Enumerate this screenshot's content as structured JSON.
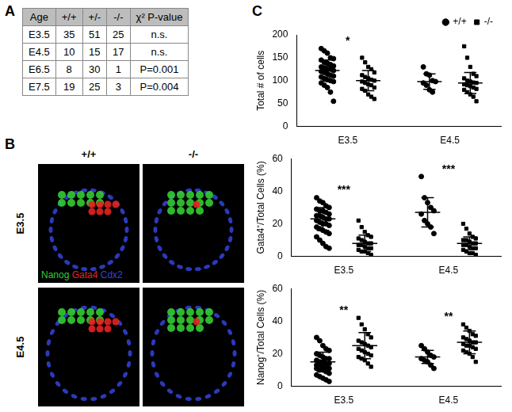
{
  "panel_labels": [
    "A",
    "B",
    "C"
  ],
  "table": {
    "header": [
      "Age",
      "+/+",
      "+/-",
      "-/-",
      "χ² P-value"
    ],
    "rows": [
      [
        "E3.5",
        35,
        51,
        25,
        "n.s."
      ],
      [
        "E4.5",
        10,
        15,
        17,
        "n.s."
      ],
      [
        "E6.5",
        8,
        30,
        1,
        "P=0.001"
      ],
      [
        "E7.5",
        19,
        25,
        3,
        "P=0.004"
      ]
    ]
  },
  "images": {
    "columns": [
      "+/+",
      "-/-"
    ],
    "rows": [
      "E3.5",
      "E4.5"
    ],
    "stains": [
      {
        "name": "Nanog",
        "color": "#33cc33"
      },
      {
        "name": "Gata4",
        "color": "#e62222"
      },
      {
        "name": "Cdx2",
        "color": "#3344dd"
      }
    ]
  },
  "chart_data": [
    {
      "type": "scatter",
      "y_label": "Total # of cells",
      "categories": [
        "E3.5",
        "E4.5"
      ],
      "ylim": [
        0,
        200
      ],
      "yticks": [
        0,
        50,
        100,
        150,
        200
      ],
      "grid": false,
      "legend": "top right",
      "series": [
        {
          "name": "+/+",
          "color": "#000000",
          "marker": "circle",
          "values": [
            [
              170,
              165,
              160,
              150,
              148,
              145,
              140,
              138,
              135,
              132,
              130,
              128,
              126,
              125,
              122,
              120,
              118,
              115,
              112,
              110,
              108,
              105,
              102,
              100,
              98,
              95,
              90,
              85,
              75,
              55
            ],
            [
              130,
              115,
              112,
              100,
              98,
              95,
              90,
              80,
              75
            ]
          ],
          "mean": [
            122,
            98
          ],
          "sd": [
            23,
            17
          ]
        },
        {
          "name": "-/-",
          "color": "#000000",
          "marker": "square",
          "values": [
            [
              150,
              140,
              130,
              125,
              118,
              112,
              108,
              105,
              102,
              100,
              98,
              95,
              92,
              90,
              85,
              82,
              78,
              70,
              65,
              60
            ],
            [
              175,
              150,
              130,
              115,
              110,
              105,
              100,
              98,
              96,
              95,
              92,
              90,
              88,
              85,
              82,
              80,
              75,
              70,
              65,
              55
            ]
          ],
          "mean": [
            100,
            95
          ],
          "sd": [
            22,
            23
          ]
        }
      ],
      "annotations": [
        {
          "category": "E3.5",
          "text": "*"
        }
      ]
    },
    {
      "type": "scatter",
      "y_label": "Gata4⁺/Total Cells (%)",
      "categories": [
        "E3.5",
        "E4.5"
      ],
      "ylim": [
        0,
        60
      ],
      "yticks": [
        0,
        20,
        40,
        60
      ],
      "grid": false,
      "series": [
        {
          "name": "+/+",
          "color": "#000000",
          "marker": "circle",
          "values": [
            [
              36,
              34,
              33,
              31,
              30,
              29,
              28,
              28,
              27,
              26,
              25,
              25,
              24,
              23,
              23,
              22,
              21,
              20,
              20,
              19,
              18,
              17,
              16,
              15,
              14,
              12,
              10,
              8,
              6,
              5
            ],
            [
              49,
              36,
              33,
              30,
              28,
              26,
              22,
              20,
              18,
              14
            ]
          ],
          "mean": [
            23,
            27
          ],
          "sd": [
            7,
            9
          ]
        },
        {
          "name": "-/-",
          "color": "#000000",
          "marker": "square",
          "values": [
            [
              22,
              18,
              15,
              13,
              12,
              11,
              10,
              9,
              8,
              8,
              7,
              7,
              6,
              5,
              5,
              4,
              3,
              3,
              2,
              1
            ],
            [
              20,
              17,
              14,
              12,
              11,
              10,
              10,
              9,
              8,
              8,
              7,
              7,
              6,
              5,
              5,
              4,
              3,
              2,
              2,
              1
            ]
          ],
          "mean": [
            8,
            8
          ],
          "sd": [
            5,
            4
          ]
        }
      ],
      "annotations": [
        {
          "category": "E3.5",
          "text": "***"
        },
        {
          "category": "E4.5",
          "text": "***"
        }
      ]
    },
    {
      "type": "scatter",
      "y_label": "Nanog⁺/Total Cells (%)",
      "categories": [
        "E3.5",
        "E4.5"
      ],
      "ylim": [
        0,
        60
      ],
      "yticks": [
        0,
        20,
        40,
        60
      ],
      "grid": false,
      "series": [
        {
          "name": "+/+",
          "color": "#000000",
          "marker": "circle",
          "values": [
            [
              30,
              28,
              25,
              23,
              22,
              20,
              19,
              18,
              17,
              17,
              16,
              15,
              15,
              14,
              14,
              13,
              13,
              12,
              12,
              11,
              11,
              10,
              10,
              9,
              8,
              7,
              6,
              5,
              4,
              3
            ],
            [
              25,
              23,
              21,
              19,
              18,
              17,
              16,
              15,
              13,
              11
            ]
          ],
          "mean": [
            15,
            18
          ],
          "sd": [
            6,
            4
          ]
        },
        {
          "name": "-/-",
          "color": "#000000",
          "marker": "square",
          "values": [
            [
              42,
              38,
              35,
              32,
              30,
              28,
              27,
              26,
              25,
              24,
              23,
              22,
              21,
              20,
              19,
              18,
              17,
              16,
              14,
              12
            ],
            [
              38,
              36,
              34,
              32,
              31,
              30,
              29,
              28,
              27,
              27,
              26,
              25,
              25,
              24,
              23,
              22,
              21,
              20,
              18,
              15
            ]
          ],
          "mean": [
            25,
            27
          ],
          "sd": [
            8,
            7
          ]
        }
      ],
      "annotations": [
        {
          "category": "E3.5",
          "text": "**"
        },
        {
          "category": "E4.5",
          "text": "**"
        }
      ]
    }
  ]
}
